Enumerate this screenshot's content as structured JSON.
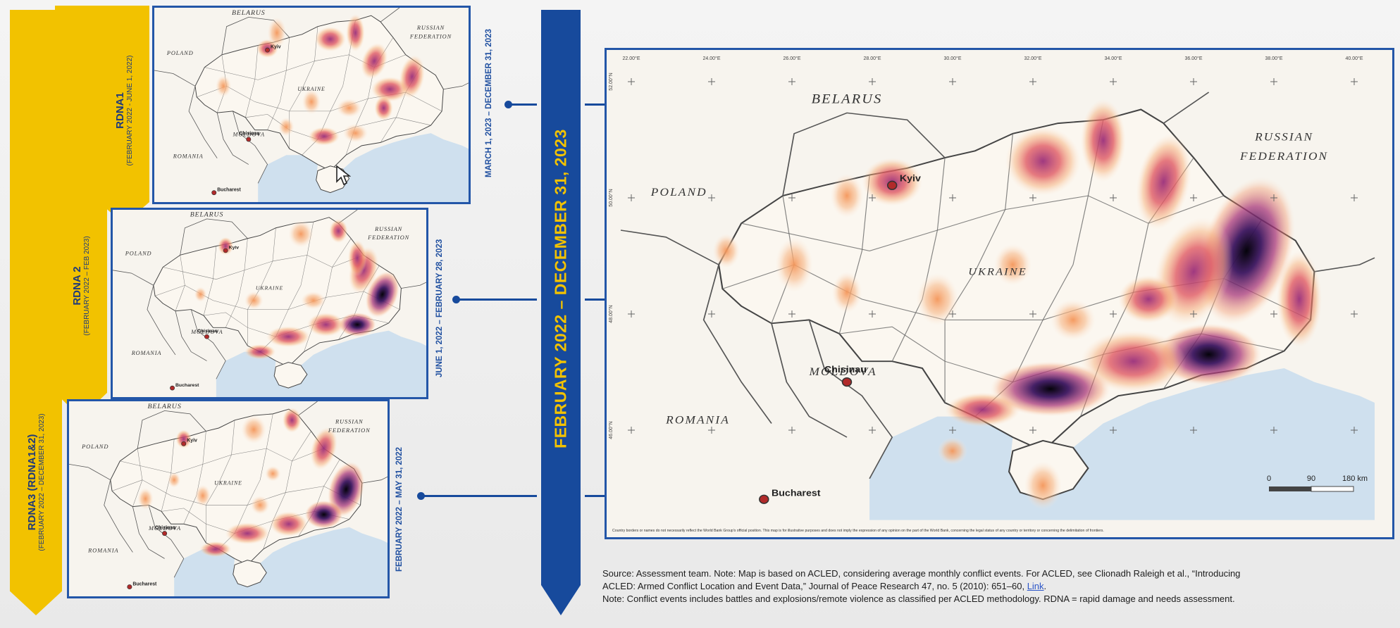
{
  "banners": {
    "rdna1": {
      "title": "RDNA1",
      "sub": "(FEBRUARY 2022 - JUNE 1, 2022)"
    },
    "rdna2": {
      "title": "RDNA 2",
      "sub": "(FEBRUARY 2022 – FEB 2023)"
    },
    "rdna3": {
      "title": "RDNA3 (RDNA1&2)",
      "sub": "(FEBRUARY 2022 – DECEMBER 31, 2023)"
    }
  },
  "periods": {
    "p1": "MARCH 1, 2023 – DECEMBER 31, 2023",
    "p2": "JUNE 1, 2022 – FEBRUARY 28, 2023",
    "p3": "FEBRUARY 2022 – MAY 31, 2022"
  },
  "timeline_title": "FEBRUARY 2022 – DECEMBER 31, 2023",
  "small_map": {
    "belarus": "BELARUS",
    "russia1": "RUSSIAN",
    "russia2": "FEDERATION",
    "poland": "POLAND",
    "ukraine": "UKRAINE",
    "moldova": "MOLDOVA",
    "romania": "ROMANIA",
    "kyiv": "Kyiv",
    "chisinau": "Chisinau",
    "bucharest": "Bucharest"
  },
  "main_map": {
    "belarus": "BELARUS",
    "russia1": "RUSSIAN",
    "russia2": "FEDERATION",
    "poland": "POLAND",
    "ukraine": "UKRAINE",
    "moldova": "MOLDOVA",
    "romania": "ROMANIA",
    "kyiv": "Kyiv",
    "chisinau": "Chisinau",
    "bucharest": "Bucharest",
    "lon": [
      "22.00°E",
      "24.00°E",
      "26.00°E",
      "28.00°E",
      "30.00°E",
      "32.00°E",
      "34.00°E",
      "36.00°E",
      "38.00°E",
      "40.00°E"
    ],
    "lat": [
      "52.00°N",
      "50.00°N",
      "48.00°N",
      "46.00°N"
    ],
    "scale": [
      "0",
      "90",
      "180 km"
    ],
    "disclaimer": "Country borders or names do not necessarily reflect the World Bank Group's official position. This map is for illustrative purposes and does not imply the expression of any opinion on the part of the World Bank, concerning the legal status of any country or territory or concerning the delimitation of frontiers."
  },
  "caption": {
    "line1": "Source: Assessment team. Note: Map is based on ACLED, considering average monthly conflict events. For ACLED, see Clionadh Raleigh et al., “Introducing",
    "line2a": "ACLED: Armed Conflict Location and Event Data,” Journal of Peace Research 47, no. 5 (2010): 651–60, ",
    "link": "Link",
    "line2b": ".",
    "line3": "Note: Conflict events includes battles and explosions/remote violence as classified per ACLED methodology. RDNA = rapid damage and needs assessment."
  },
  "colors": {
    "navy": "#174a9c",
    "yellow": "#f2c200",
    "sea": "#cfe0ee",
    "heat_low": "#f6b07a",
    "heat_mid": "#c2477a",
    "heat_high": "#2a1240"
  }
}
